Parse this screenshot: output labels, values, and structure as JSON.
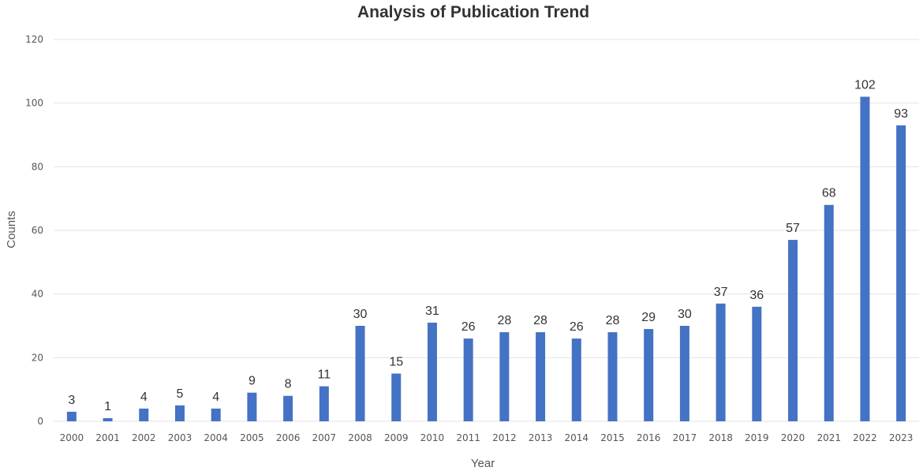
{
  "chart_data": {
    "type": "bar",
    "title": "Analysis of Publication Trend",
    "xlabel": "Year",
    "ylabel": "Counts",
    "categories": [
      "2000",
      "2001",
      "2002",
      "2003",
      "2004",
      "2005",
      "2006",
      "2007",
      "2008",
      "2009",
      "2010",
      "2011",
      "2012",
      "2013",
      "2014",
      "2015",
      "2016",
      "2017",
      "2018",
      "2019",
      "2020",
      "2021",
      "2022",
      "2023"
    ],
    "values": [
      3,
      1,
      4,
      5,
      4,
      9,
      8,
      11,
      30,
      15,
      31,
      26,
      28,
      28,
      26,
      28,
      29,
      30,
      37,
      36,
      57,
      68,
      102,
      93
    ],
    "ylim": [
      0,
      120
    ],
    "yticks": [
      0,
      20,
      40,
      60,
      80,
      100,
      120
    ],
    "grid": true,
    "legend": "none",
    "bar_color": "#4472c4"
  }
}
